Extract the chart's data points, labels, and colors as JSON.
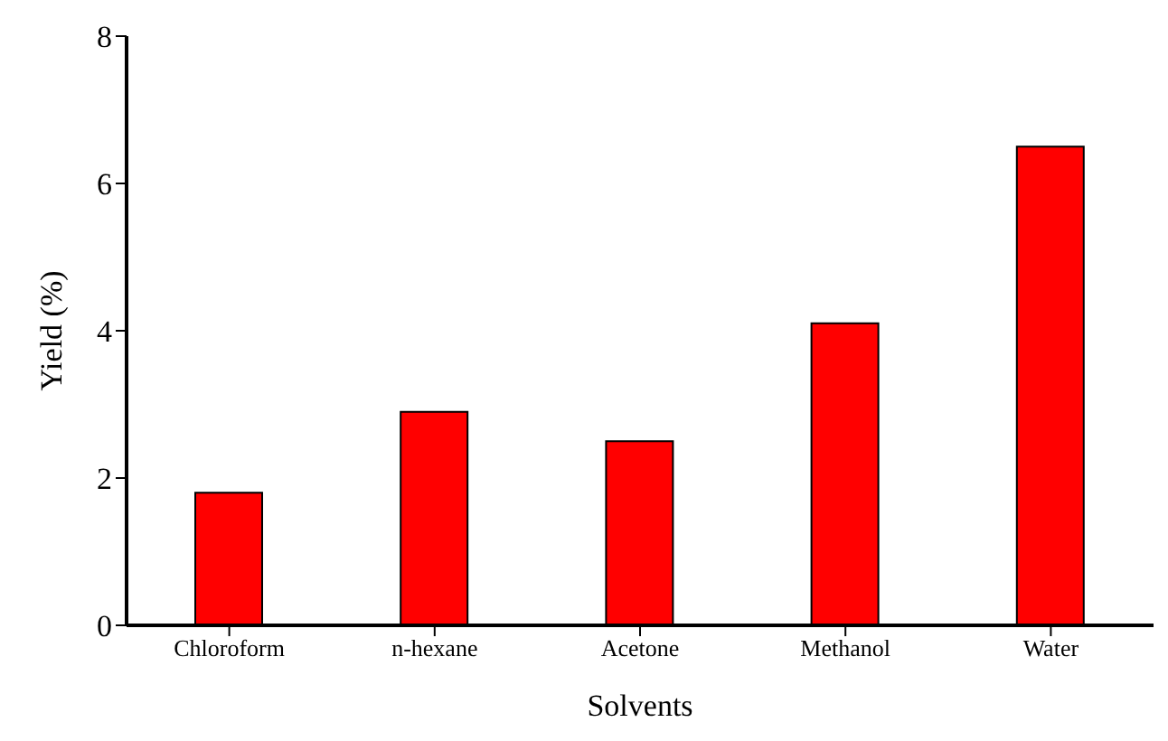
{
  "chart_data": {
    "type": "bar",
    "xlabel": "Solvents",
    "ylabel": "Yield (%)",
    "categories": [
      "Chloroform",
      "n-hexane",
      "Acetone",
      "Methanol",
      "Water"
    ],
    "values": [
      1.8,
      2.9,
      2.5,
      4.1,
      6.5
    ],
    "color": "#ff0000",
    "ylim": [
      0,
      8
    ],
    "yticks": [
      0,
      2,
      4,
      6,
      8
    ],
    "grid": false,
    "legend": false
  }
}
